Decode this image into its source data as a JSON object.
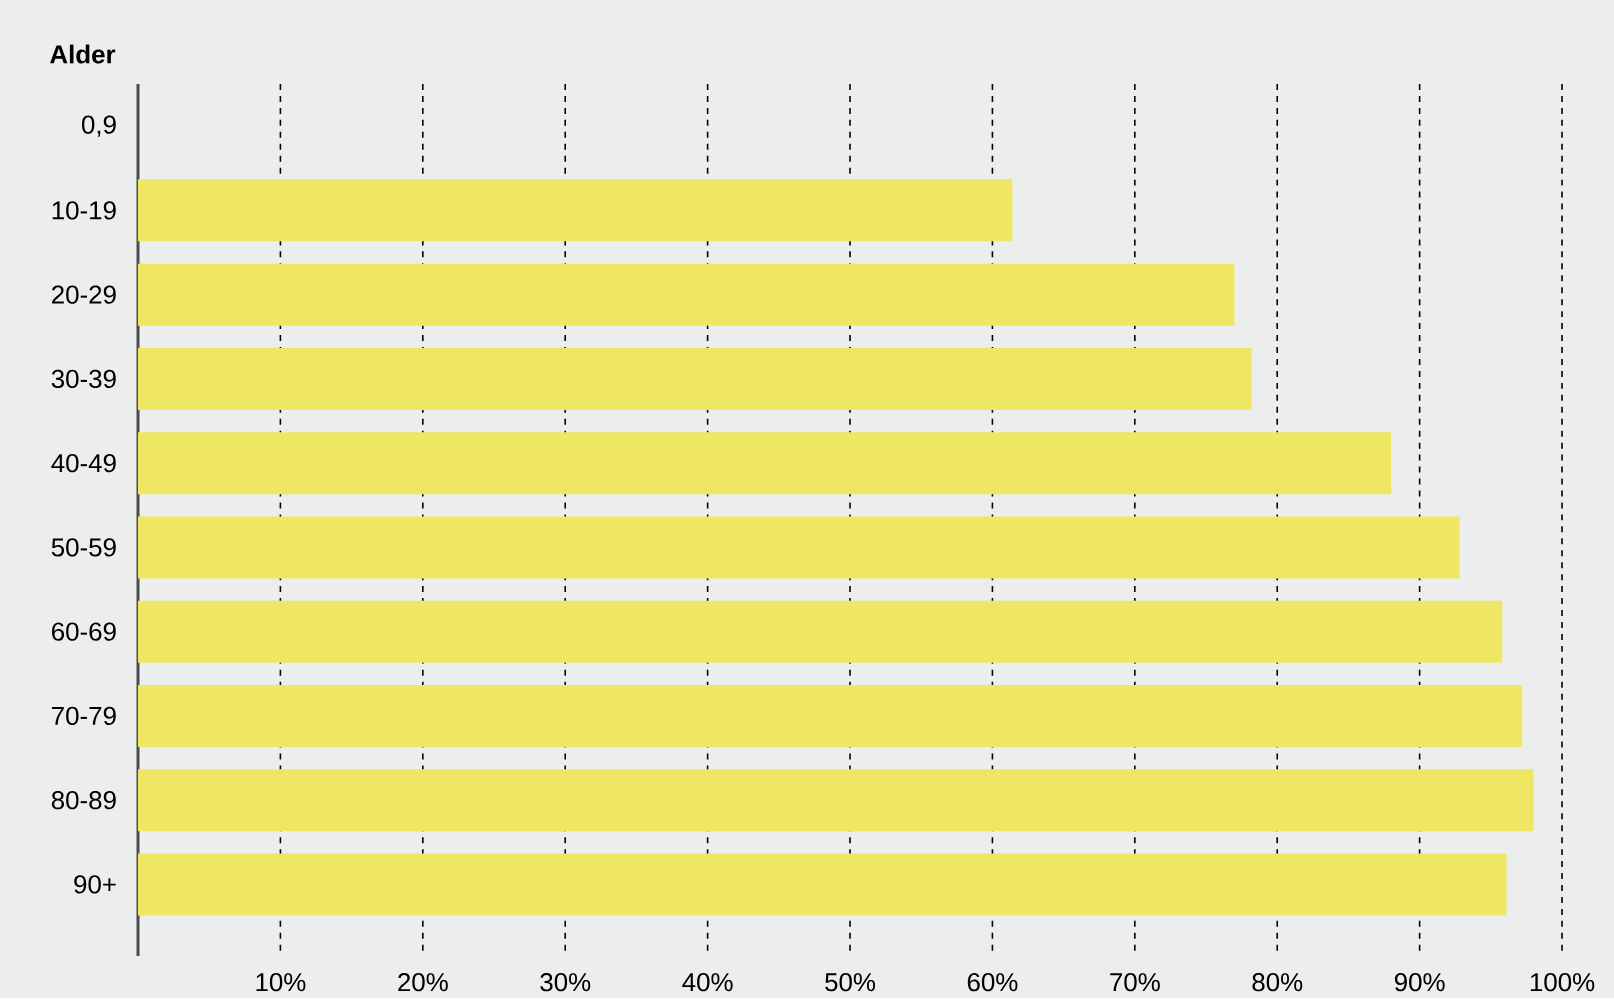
{
  "chart_data": {
    "type": "bar",
    "orientation": "horizontal",
    "ylabel": "Alder",
    "categories": [
      "0,9",
      "10-19",
      "20-29",
      "30-39",
      "40-49",
      "50-59",
      "60-69",
      "70-79",
      "80-89",
      "90+"
    ],
    "values": [
      null,
      61.4,
      77.0,
      78.2,
      88.0,
      92.8,
      95.8,
      97.2,
      98.0,
      96.1
    ],
    "color": "#efe764",
    "xlim": [
      0,
      100
    ],
    "xticks": [
      {
        "value": 10,
        "label": "10%"
      },
      {
        "value": 20,
        "label": "20%"
      },
      {
        "value": 30,
        "label": "30%"
      },
      {
        "value": 40,
        "label": "40%"
      },
      {
        "value": 50,
        "label": "50%"
      },
      {
        "value": 60,
        "label": "60%"
      },
      {
        "value": 70,
        "label": "70%"
      },
      {
        "value": 80,
        "label": "80%"
      },
      {
        "value": 90,
        "label": "90%"
      },
      {
        "value": 100,
        "label": "100%"
      }
    ],
    "grid": "x"
  }
}
